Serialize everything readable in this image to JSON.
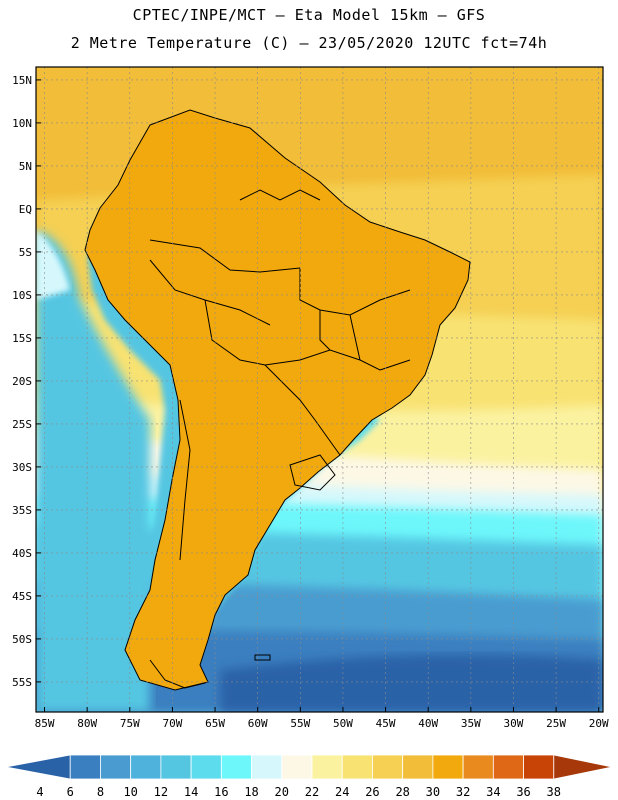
{
  "header": {
    "line1": "CPTEC/INPE/MCT –  Eta Model 15km – GFS",
    "line2": "2 Metre Temperature (C) – 23/05/2020 12UTC fct=74h"
  },
  "map": {
    "lat_labels": [
      "15N",
      "10N",
      "5N",
      "EQ",
      "5S",
      "10S",
      "15S",
      "20S",
      "25S",
      "30S",
      "35S",
      "40S",
      "45S",
      "50S",
      "55S"
    ],
    "lat_values": [
      15,
      10,
      5,
      0,
      -5,
      -10,
      -15,
      -20,
      -25,
      -30,
      -35,
      -40,
      -45,
      -50,
      -55
    ],
    "lon_labels": [
      "85W",
      "80W",
      "75W",
      "70W",
      "65W",
      "60W",
      "55W",
      "50W",
      "45W",
      "40W",
      "35W",
      "30W",
      "25W",
      "20W"
    ],
    "lon_values": [
      -85,
      -80,
      -75,
      -70,
      -65,
      -60,
      -55,
      -50,
      -45,
      -40,
      -35,
      -30,
      -25,
      -20
    ],
    "lat_range": [
      -58.5,
      16.5
    ],
    "lon_range": [
      -86,
      -19.5
    ]
  },
  "colorbar": {
    "labels": [
      "4",
      "6",
      "8",
      "10",
      "12",
      "14",
      "16",
      "18",
      "20",
      "22",
      "24",
      "26",
      "28",
      "30",
      "32",
      "34",
      "36",
      "38"
    ],
    "colors": [
      "#2a62a8",
      "#3a7fc0",
      "#4a9cd0",
      "#4fb2dc",
      "#54c6e2",
      "#5cdcec",
      "#6df7fb",
      "#d6f8fc",
      "#fdf8e6",
      "#fbf2a0",
      "#f8e272",
      "#f5d052",
      "#f2bd38",
      "#f2a90e",
      "#e88a1e",
      "#df6816",
      "#c84406",
      "#a6380a"
    ]
  },
  "colors": {
    "ocean_deep": "#2a62a8",
    "ocean_cool": "#3a7fc0",
    "ocean_mid": "#54c6e2",
    "ocean_warm": "#f8e272",
    "land_hot": "#df6816"
  }
}
